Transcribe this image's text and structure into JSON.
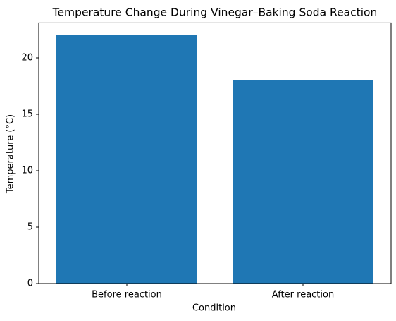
{
  "chart_data": {
    "type": "bar",
    "title": "Temperature Change During Vinegar–Baking Soda Reaction",
    "x_label": "Condition",
    "y_label": "Temperature (°C)",
    "categories": [
      "Before reaction",
      "After reaction"
    ],
    "values": [
      22,
      18
    ],
    "color": "#1f77b4",
    "ylim": [
      0,
      23.1
    ],
    "yticks": [
      0,
      5,
      10,
      15,
      20
    ],
    "grid": false
  }
}
